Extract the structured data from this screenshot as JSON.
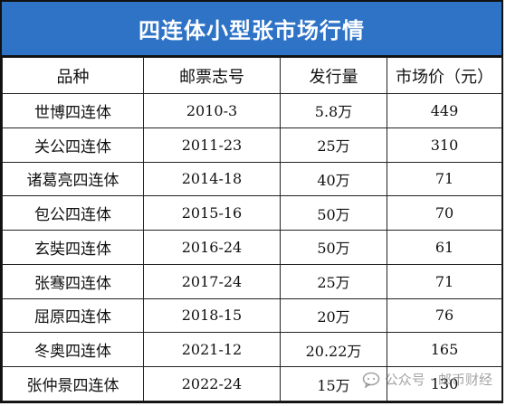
{
  "title": "四连体小型张市场行情",
  "headers": [
    "品种",
    "邮票志号",
    "发行量",
    "市场价（元）"
  ],
  "rows": [
    [
      "世博四连体",
      "2010-3",
      "5.8万",
      "449"
    ],
    [
      "关公四连体",
      "2011-23",
      "25万",
      "310"
    ],
    [
      "诸葛亮四连体",
      "2014-18",
      "40万",
      "71"
    ],
    [
      "包公四连体",
      "2015-16",
      "50万",
      "70"
    ],
    [
      "玄奘四连体",
      "2016-24",
      "50万",
      "61"
    ],
    [
      "张骞四连体",
      "2017-24",
      "25万",
      "71"
    ],
    [
      "屈原四连体",
      "2018-15",
      "20万",
      "76"
    ],
    [
      "冬奥四连体",
      "2021-12",
      "20.22万",
      "165"
    ],
    [
      "张仲景四连体",
      "2022-24",
      "15万",
      "130"
    ]
  ],
  "watermark": {
    "text": "公众号 · 邮币财经",
    "icon": "wechat-official-account-icon"
  },
  "colors": {
    "title_bg": "#2e73c6",
    "title_text": "#ffffff",
    "border": "#222222"
  }
}
